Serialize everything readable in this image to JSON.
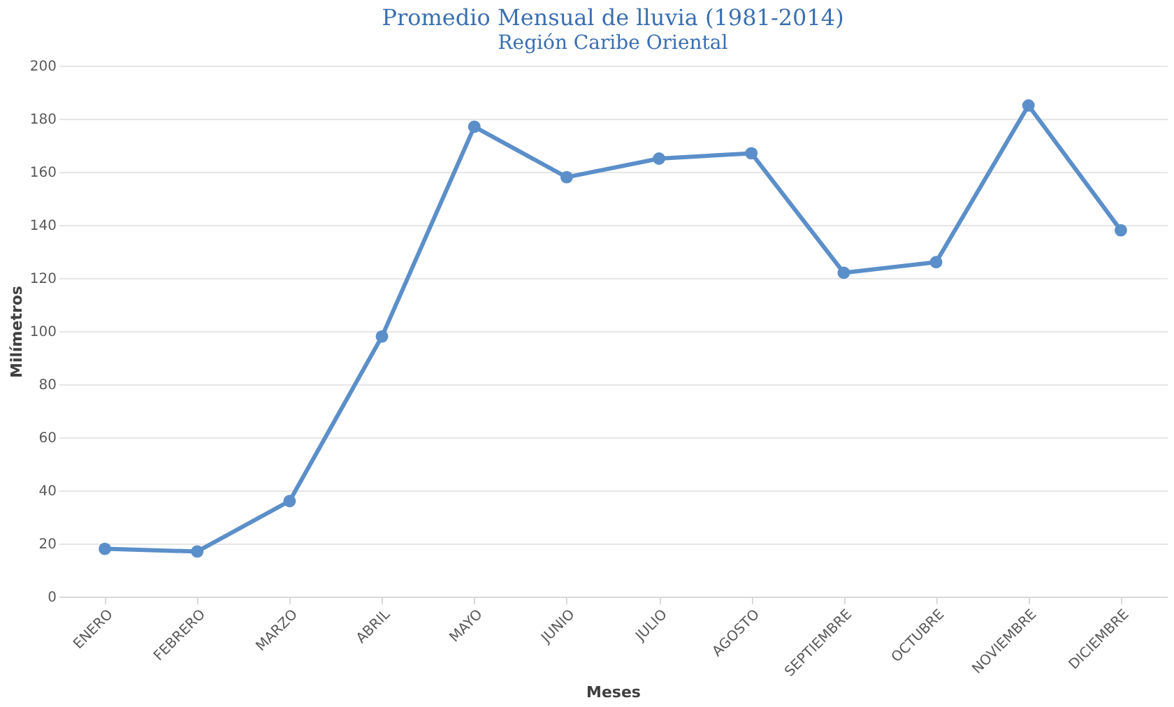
{
  "chart_data": {
    "type": "line",
    "title": "Promedio Mensual de lluvia (1981-2014)",
    "subtitle": "Región Caribe Oriental",
    "xlabel": "Meses",
    "ylabel": "Milímetros",
    "categories": [
      "ENERO",
      "FEBRERO",
      "MARZO",
      "ABRIL",
      "MAYO",
      "JUNIO",
      "JULIO",
      "AGOSTO",
      "SEPTIEMBRE",
      "OCTUBRE",
      "NOVIEMBRE",
      "DICIEMBRE"
    ],
    "series": [
      {
        "color": "#5b8fc9",
        "values": [
          18,
          17,
          36,
          98,
          177,
          158,
          165,
          167,
          122,
          126,
          185,
          138
        ]
      }
    ],
    "ylim": [
      0,
      200
    ],
    "yticks": [
      0,
      20,
      40,
      60,
      80,
      100,
      120,
      140,
      160,
      180,
      200
    ],
    "grid": "y",
    "marker": "circle",
    "line_style": "solid",
    "legend": false
  }
}
